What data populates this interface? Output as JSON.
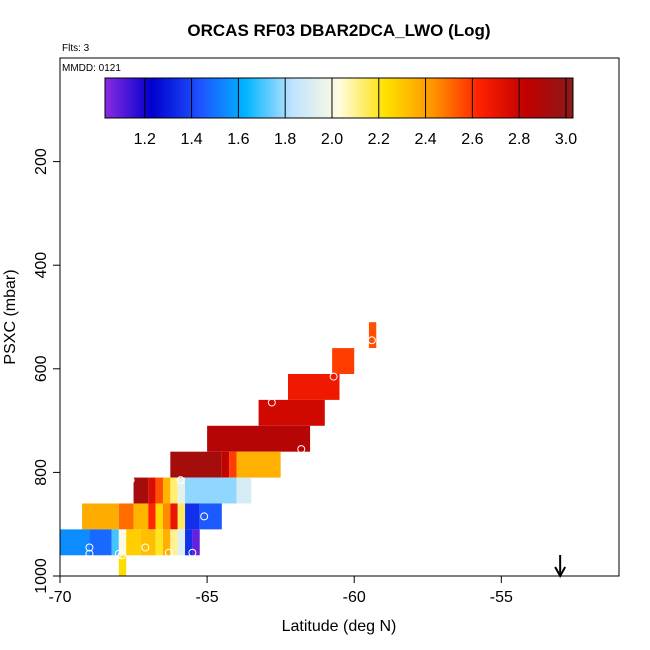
{
  "chart_data": {
    "type": "heatmap",
    "title": "ORCAS RF03 DBAR2DCA_LWO (Log)",
    "subtitle": "Flts: 3",
    "annotation": "MMDD: 0121",
    "xlabel": "Latitude (deg N)",
    "ylabel": "PSXC (mbar)",
    "xlim": [
      -70,
      -51
    ],
    "ylim": [
      1000,
      0
    ],
    "xticks": [
      -70,
      -65,
      -60,
      -55
    ],
    "yticks": [
      200,
      400,
      600,
      800,
      1000
    ],
    "colorbar": {
      "range": [
        1.03,
        3.03
      ],
      "ticks": [
        1.2,
        1.4,
        1.6,
        1.8,
        2.0,
        2.2,
        2.4,
        2.6,
        2.8,
        3.0
      ],
      "tick_labels": [
        "1.2",
        "1.4",
        "1.6",
        "1.8",
        "2.0",
        "2.2",
        "2.4",
        "2.6",
        "2.8",
        "3.0"
      ],
      "colors": [
        "#8a2be2",
        "#0000cd",
        "#1e50ff",
        "#00b4ff",
        "#bfe3ff",
        "#fffce0",
        "#ffe000",
        "#ff9600",
        "#ff2000",
        "#c00000",
        "#8b1a1a"
      ],
      "position": "top"
    },
    "cells": [
      {
        "lat0": -59.5,
        "lat1": -59.25,
        "p0": 510,
        "p1": 560,
        "value": 2.55
      },
      {
        "lat0": -60.75,
        "lat1": -60.0,
        "p0": 560,
        "p1": 610,
        "value": 2.58
      },
      {
        "lat0": -62.25,
        "lat1": -60.5,
        "p0": 610,
        "p1": 660,
        "value": 2.68
      },
      {
        "lat0": -63.25,
        "lat1": -61.0,
        "p0": 660,
        "p1": 710,
        "value": 2.78
      },
      {
        "lat0": -65.0,
        "lat1": -61.5,
        "p0": 710,
        "p1": 760,
        "value": 2.87
      },
      {
        "lat0": -66.25,
        "lat1": -64.5,
        "p0": 760,
        "p1": 810,
        "value": 2.93
      },
      {
        "lat0": -64.5,
        "lat1": -64.25,
        "p0": 760,
        "p1": 810,
        "value": 2.82
      },
      {
        "lat0": -64.25,
        "lat1": -64.0,
        "p0": 760,
        "p1": 810,
        "value": 2.58
      },
      {
        "lat0": -64.0,
        "lat1": -62.5,
        "p0": 760,
        "p1": 810,
        "value": 2.36
      },
      {
        "lat0": -67.5,
        "lat1": -67.0,
        "p0": 810,
        "p1": 860,
        "value": 2.93
      },
      {
        "lat0": -67.0,
        "lat1": -66.75,
        "p0": 810,
        "p1": 860,
        "value": 2.75
      },
      {
        "lat0": -66.75,
        "lat1": -66.5,
        "p0": 810,
        "p1": 860,
        "value": 2.55
      },
      {
        "lat0": -66.5,
        "lat1": -66.25,
        "p0": 810,
        "p1": 860,
        "value": 2.35
      },
      {
        "lat0": -66.25,
        "lat1": -66.0,
        "p0": 810,
        "p1": 860,
        "value": 2.13
      },
      {
        "lat0": -66.0,
        "lat1": -65.75,
        "p0": 810,
        "p1": 860,
        "value": 1.95
      },
      {
        "lat0": -65.75,
        "lat1": -64.0,
        "p0": 810,
        "p1": 860,
        "value": 1.78
      },
      {
        "lat0": -64.0,
        "lat1": -63.5,
        "p0": 810,
        "p1": 860,
        "value": 1.9
      },
      {
        "lat0": -69.25,
        "lat1": -68.0,
        "p0": 860,
        "p1": 910,
        "value": 2.37
      },
      {
        "lat0": -68.0,
        "lat1": -67.5,
        "p0": 860,
        "p1": 910,
        "value": 2.5
      },
      {
        "lat0": -67.5,
        "lat1": -67.0,
        "p0": 860,
        "p1": 910,
        "value": 2.35
      },
      {
        "lat0": -67.0,
        "lat1": -66.75,
        "p0": 860,
        "p1": 910,
        "value": 2.62
      },
      {
        "lat0": -66.75,
        "lat1": -66.5,
        "p0": 860,
        "p1": 910,
        "value": 2.25
      },
      {
        "lat0": -66.5,
        "lat1": -66.25,
        "p0": 860,
        "p1": 910,
        "value": 2.45
      },
      {
        "lat0": -66.25,
        "lat1": -66.0,
        "p0": 860,
        "p1": 910,
        "value": 2.7
      },
      {
        "lat0": -66.0,
        "lat1": -65.75,
        "p0": 860,
        "p1": 910,
        "value": 2.15
      },
      {
        "lat0": -65.75,
        "lat1": -65.25,
        "p0": 860,
        "p1": 910,
        "value": 1.35
      },
      {
        "lat0": -65.25,
        "lat1": -64.5,
        "p0": 860,
        "p1": 910,
        "value": 1.45
      },
      {
        "lat0": -70.0,
        "lat1": -69.0,
        "p0": 910,
        "p1": 960,
        "value": 1.55
      },
      {
        "lat0": -69.0,
        "lat1": -68.25,
        "p0": 910,
        "p1": 960,
        "value": 1.48
      },
      {
        "lat0": -68.25,
        "lat1": -68.0,
        "p0": 910,
        "p1": 960,
        "value": 1.7
      },
      {
        "lat0": -68.0,
        "lat1": -67.75,
        "p0": 910,
        "p1": 960,
        "value": 2.02
      },
      {
        "lat0": -67.75,
        "lat1": -67.25,
        "p0": 910,
        "p1": 960,
        "value": 2.28
      },
      {
        "lat0": -67.25,
        "lat1": -66.75,
        "p0": 910,
        "p1": 960,
        "value": 2.32
      },
      {
        "lat0": -66.75,
        "lat1": -66.5,
        "p0": 910,
        "p1": 960,
        "value": 2.2
      },
      {
        "lat0": -66.5,
        "lat1": -66.25,
        "p0": 910,
        "p1": 960,
        "value": 2.36
      },
      {
        "lat0": -66.25,
        "lat1": -66.0,
        "p0": 910,
        "p1": 960,
        "value": 2.1
      },
      {
        "lat0": -66.0,
        "lat1": -65.75,
        "p0": 910,
        "p1": 960,
        "value": 1.92
      },
      {
        "lat0": -65.75,
        "lat1": -65.5,
        "p0": 910,
        "p1": 960,
        "value": 1.35
      },
      {
        "lat0": -65.5,
        "lat1": -65.25,
        "p0": 910,
        "p1": 960,
        "value": 1.08
      },
      {
        "lat0": -68.0,
        "lat1": -67.75,
        "p0": 960,
        "p1": 1010,
        "value": 2.24
      }
    ],
    "markers": [
      {
        "lat": -59.4,
        "p": 545
      },
      {
        "lat": -60.7,
        "p": 615
      },
      {
        "lat": -62.8,
        "p": 665
      },
      {
        "lat": -61.8,
        "p": 755
      },
      {
        "lat": -67.6,
        "p": 815
      },
      {
        "lat": -65.9,
        "p": 815
      },
      {
        "lat": -65.1,
        "p": 885
      },
      {
        "lat": -69.0,
        "p": 945
      },
      {
        "lat": -69.0,
        "p": 957
      },
      {
        "lat": -68.0,
        "p": 957
      },
      {
        "lat": -67.9,
        "p": 960
      },
      {
        "lat": -67.1,
        "p": 945
      },
      {
        "lat": -66.3,
        "p": 955
      },
      {
        "lat": -65.5,
        "p": 955
      }
    ],
    "arrow": {
      "lat": -53,
      "direction": "down"
    }
  }
}
